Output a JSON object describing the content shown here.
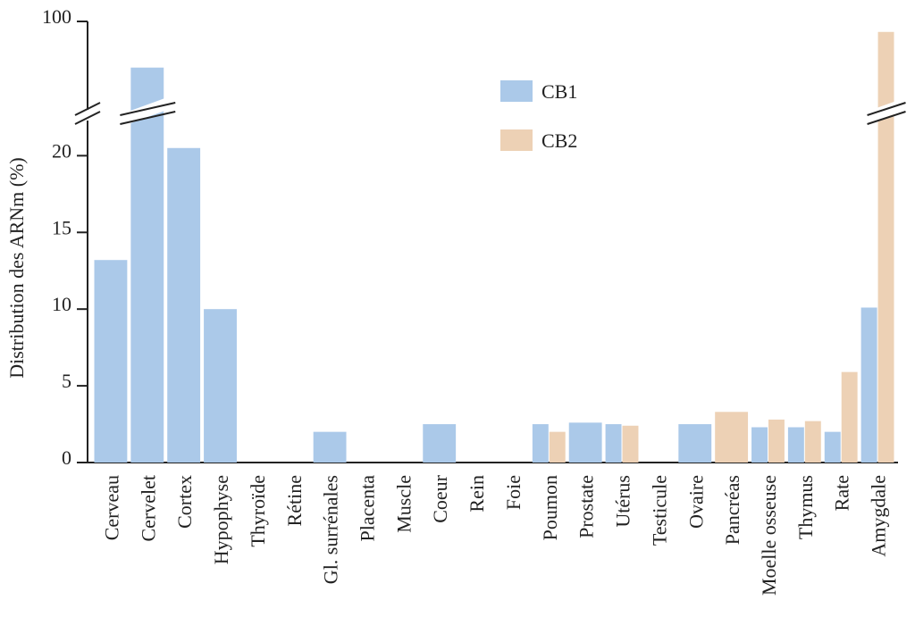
{
  "chart_data": {
    "type": "bar",
    "y_label": "Distribution des ARNm (%)",
    "categories": [
      "Cerveau",
      "Cervelet",
      "Cortex",
      "Hypophyse",
      "Thyroïde",
      "Rétine",
      "Gl. surrénales",
      "Placenta",
      "Muscle",
      "Coeur",
      "Rein",
      "Foie",
      "Poumon",
      "Prostate",
      "Utérus",
      "Testicule",
      "Ovaire",
      "Pancréas",
      "Moelle osseuse",
      "Thymus",
      "Rate",
      "Amygdale"
    ],
    "series": [
      {
        "name": "CB1",
        "color": "#abc9e9",
        "values": [
          13.2,
          78,
          20.5,
          10,
          null,
          null,
          2.0,
          null,
          null,
          2.5,
          null,
          null,
          2.5,
          2.6,
          2.5,
          null,
          2.5,
          null,
          2.3,
          2.3,
          2.0,
          10.1
        ]
      },
      {
        "name": "CB2",
        "color": "#edd1b5",
        "values": [
          null,
          null,
          null,
          null,
          null,
          null,
          null,
          null,
          null,
          null,
          null,
          null,
          2.0,
          null,
          2.4,
          null,
          null,
          3.3,
          2.8,
          2.7,
          5.9,
          95
        ]
      }
    ],
    "ylim": [
      0,
      100
    ],
    "axis_break": [
      22,
      60
    ],
    "yticks": [
      0,
      5,
      10,
      15,
      20,
      100
    ]
  }
}
